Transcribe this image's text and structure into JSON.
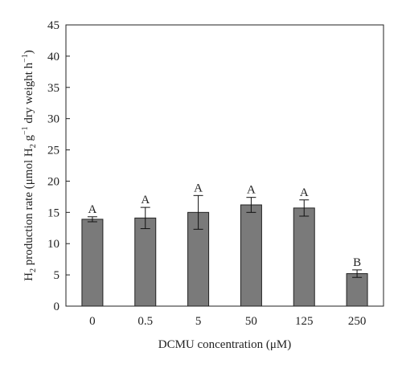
{
  "chart_data": {
    "type": "bar",
    "categories": [
      "0",
      "0.5",
      "5",
      "50",
      "125",
      "250"
    ],
    "values": [
      13.9,
      14.1,
      15.0,
      16.2,
      15.7,
      5.2
    ],
    "errors": [
      0.4,
      1.7,
      2.7,
      1.2,
      1.3,
      0.6
    ],
    "significance_labels": [
      "A",
      "A",
      "A",
      "A",
      "A",
      "B"
    ],
    "xlabel": "DCMU concentration (μM)",
    "ylabel": {
      "prefix": "H",
      "prefix_sub": "2",
      "middle": " production rate (μmol H",
      "middle_sub": "2",
      "g_text": " g",
      "g_sup": "−1",
      "dry_text": " dry weight h",
      "dry_sup": "−1",
      "suffix": ")"
    },
    "ylim": [
      0,
      45
    ],
    "yticks": [
      "0",
      "5",
      "10",
      "15",
      "20",
      "25",
      "30",
      "35",
      "40",
      "45"
    ],
    "grid": false,
    "bar_color": "#7a7a7a"
  }
}
